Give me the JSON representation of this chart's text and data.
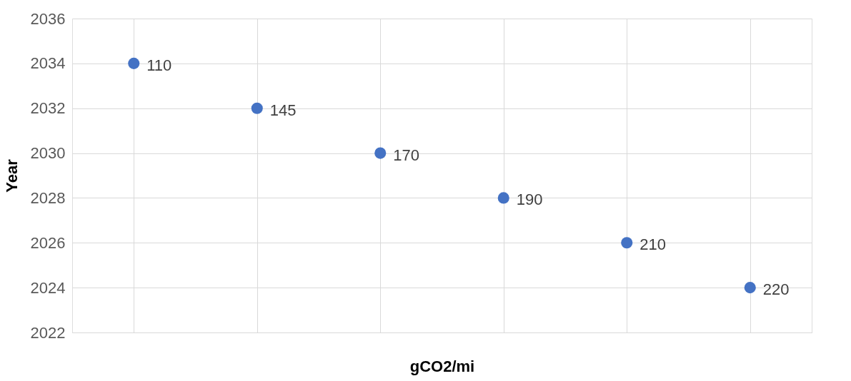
{
  "chart_data": {
    "type": "scatter",
    "xlabel": "gCO2/mi",
    "ylabel": "Year",
    "categories": [
      null,
      null,
      null,
      null,
      null,
      null
    ],
    "series": [
      {
        "color": "#4472c4",
        "values": [
          2034,
          2032,
          2030,
          2028,
          2026,
          2024
        ]
      }
    ],
    "annotations": [
      "110",
      "145",
      "170",
      "190",
      "210",
      "220"
    ],
    "ylim": [
      2022,
      2036
    ],
    "yticks": [
      2022,
      2024,
      2026,
      2028,
      2030,
      2032,
      2034,
      2036
    ],
    "grid": true,
    "marker": "circle"
  }
}
